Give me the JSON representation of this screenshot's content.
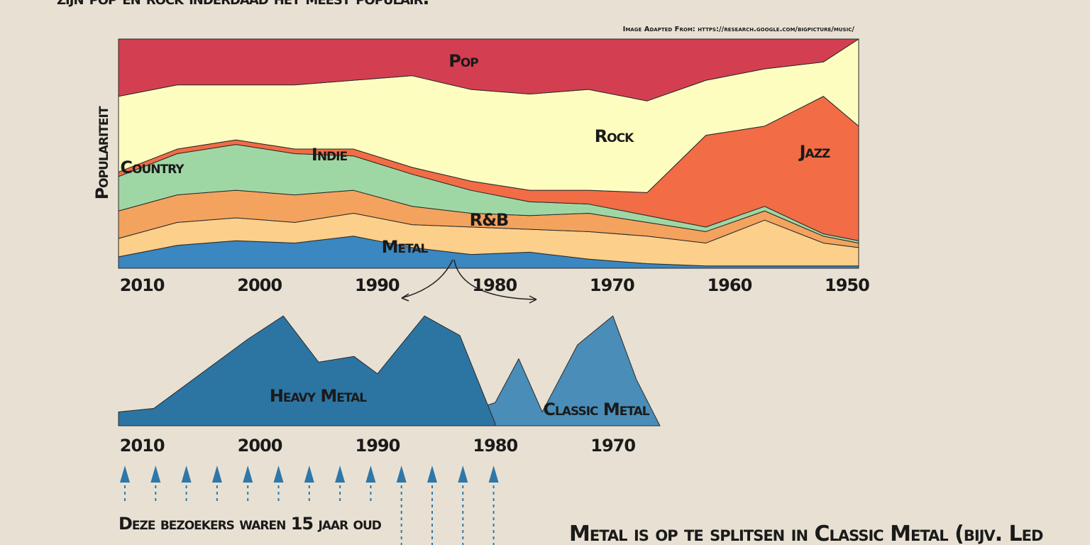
{
  "header": "zijn pop en rock inderdaad het meest populair.",
  "source": "Image Adapted From: https://research.google.com/bigpicture/music/",
  "footer_left": "Deze bezoekers waren 15 jaar oud",
  "footer_right": "Metal is op te splitsen in Classic Metal (bijv. Led",
  "chart_data": [
    {
      "type": "area",
      "stacked": true,
      "y_label": "Populariteit",
      "x": [
        2012,
        2007,
        2002,
        1997,
        1992,
        1987,
        1982,
        1977,
        1972,
        1967,
        1962,
        1957,
        1952,
        1949
      ],
      "xlim": [
        2012,
        1949
      ],
      "xticks": [
        2010,
        2000,
        1990,
        1980,
        1970,
        1960,
        1950
      ],
      "ylim": [
        0,
        100
      ],
      "series": [
        {
          "name": "Metal",
          "color": "#3a87c1",
          "values": [
            5,
            10,
            12,
            11,
            14,
            9,
            6,
            7,
            4,
            2,
            1,
            1,
            1,
            1
          ]
        },
        {
          "name": "R&B",
          "color": "#fccf8a",
          "values": [
            8,
            10,
            10,
            9,
            10,
            10,
            12,
            10,
            12,
            12,
            10,
            20,
            10,
            8
          ]
        },
        {
          "name": "Country",
          "color": "#f3a35e",
          "values": [
            12,
            12,
            12,
            12,
            10,
            8,
            6,
            6,
            8,
            6,
            5,
            4,
            3,
            2
          ]
        },
        {
          "name": "Indie",
          "color": "#9fd7a4",
          "values": [
            15,
            18,
            20,
            18,
            15,
            14,
            10,
            6,
            4,
            3,
            2,
            2,
            1,
            1
          ]
        },
        {
          "name": "Jazz",
          "color": "#f26c45",
          "values": [
            2,
            2,
            2,
            2,
            3,
            3,
            4,
            5,
            6,
            10,
            40,
            35,
            60,
            50
          ]
        },
        {
          "name": "Rock",
          "color": "#fdfdc0",
          "values": [
            33,
            28,
            24,
            28,
            30,
            40,
            40,
            42,
            44,
            40,
            24,
            25,
            15,
            38
          ]
        },
        {
          "name": "Pop",
          "color": "#d33f51",
          "values": [
            25,
            20,
            20,
            20,
            18,
            16,
            22,
            24,
            22,
            27,
            18,
            13,
            10,
            0
          ]
        }
      ]
    },
    {
      "type": "area",
      "stacked": false,
      "x": [
        2012,
        2009,
        2005,
        2001,
        1998,
        1995,
        1992,
        1990,
        1986,
        1983,
        1980,
        1978,
        1976,
        1973,
        1970,
        1968,
        1966
      ],
      "xlim": [
        2012,
        1966
      ],
      "xticks": [
        2010,
        2000,
        1990,
        1980,
        1970
      ],
      "ylim": [
        0,
        100
      ],
      "series": [
        {
          "name": "Classic Metal",
          "color": "#4a8db8",
          "values": [
            1,
            1,
            2,
            2,
            3,
            3,
            4,
            5,
            6,
            10,
            20,
            58,
            12,
            70,
            95,
            40,
            0
          ]
        },
        {
          "name": "Heavy Metal",
          "color": "#2c75a3",
          "values": [
            12,
            15,
            45,
            75,
            95,
            55,
            60,
            45,
            95,
            78,
            2,
            null,
            null,
            null,
            null,
            null,
            null
          ]
        }
      ]
    }
  ]
}
